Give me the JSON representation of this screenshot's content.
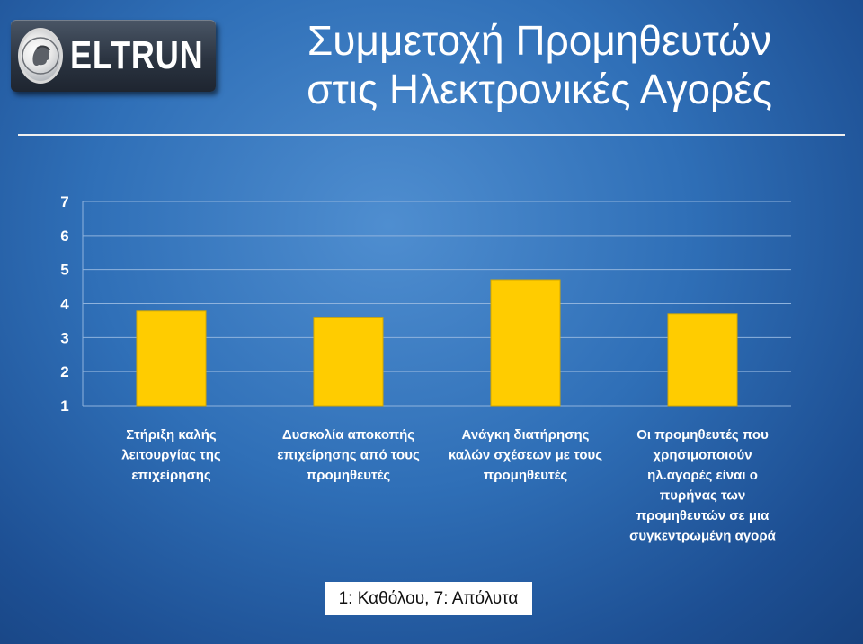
{
  "logo": {
    "text": "ELTRUN",
    "emblem": "coin-head-emblem"
  },
  "title": {
    "line1": "Συμμετοχή Προμηθευτών",
    "line2": "στις Ηλεκτρονικές Αγορές"
  },
  "note": "1: Καθόλου, 7: Απόλυτα",
  "colors": {
    "bar": "#ffcc00",
    "bar_edge": "#d4a800",
    "gridline": "#8fb3dd",
    "axis_text": "#ffffff"
  },
  "chart_data": {
    "type": "bar",
    "title": "",
    "xlabel": "",
    "ylabel": "",
    "ylim": [
      1,
      7
    ],
    "yticks": [
      1,
      2,
      3,
      4,
      5,
      6,
      7
    ],
    "grid": true,
    "categories": [
      [
        "Στήριξη καλής",
        "λειτουργίας της",
        "επιχείρησης"
      ],
      [
        "Δυσκολία αποκοπής",
        "επιχείρησης από τους",
        "προμηθευτές"
      ],
      [
        "Ανάγκη διατήρησης",
        "καλών σχέσεων με τους",
        "προμηθευτές"
      ],
      [
        "Οι προμηθευτές που",
        "χρησιμοποιούν",
        "ηλ.αγορές είναι ο",
        "πυρήνας των",
        "προμηθευτών σε μια",
        "συγκεντρωμένη αγορά"
      ]
    ],
    "values": [
      3.78,
      3.6,
      4.7,
      3.7
    ]
  }
}
